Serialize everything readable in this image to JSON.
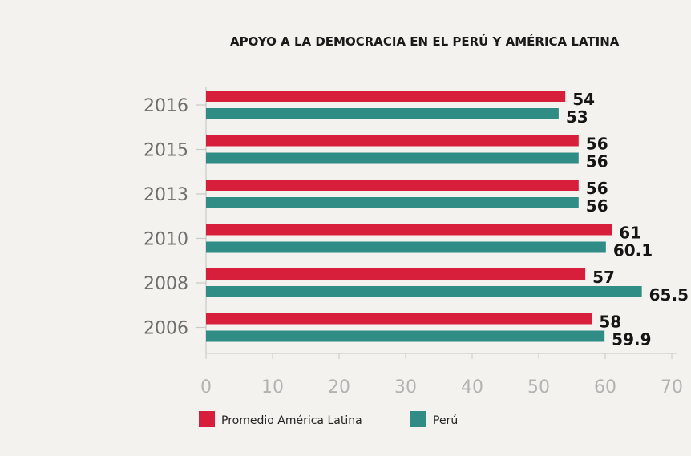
{
  "chart_data": {
    "type": "bar",
    "orientation": "horizontal",
    "title": "APOYO A LA DEMOCRACIA EN EL PERÚ Y AMÉRICA LATINA",
    "categories": [
      "2016",
      "2015",
      "2013",
      "2010",
      "2008",
      "2006"
    ],
    "series": [
      {
        "name": "Promedio América Latina",
        "color": "#d71e3a",
        "values": [
          54,
          56,
          56,
          61,
          57,
          58
        ],
        "labels": [
          "54",
          "56",
          "56",
          "61",
          "57",
          "58"
        ]
      },
      {
        "name": "Perú",
        "color": "#2f8d86",
        "values": [
          53,
          56,
          56,
          60.1,
          65.5,
          59.9
        ],
        "labels": [
          "53",
          "56",
          "56",
          "60.1",
          "65.5",
          "59.9"
        ]
      }
    ],
    "xlim": [
      0,
      70
    ],
    "xticks": [
      "0",
      "10",
      "20",
      "30",
      "40",
      "50",
      "60",
      "70"
    ],
    "grid": false,
    "legend_position": "bottom-left"
  }
}
